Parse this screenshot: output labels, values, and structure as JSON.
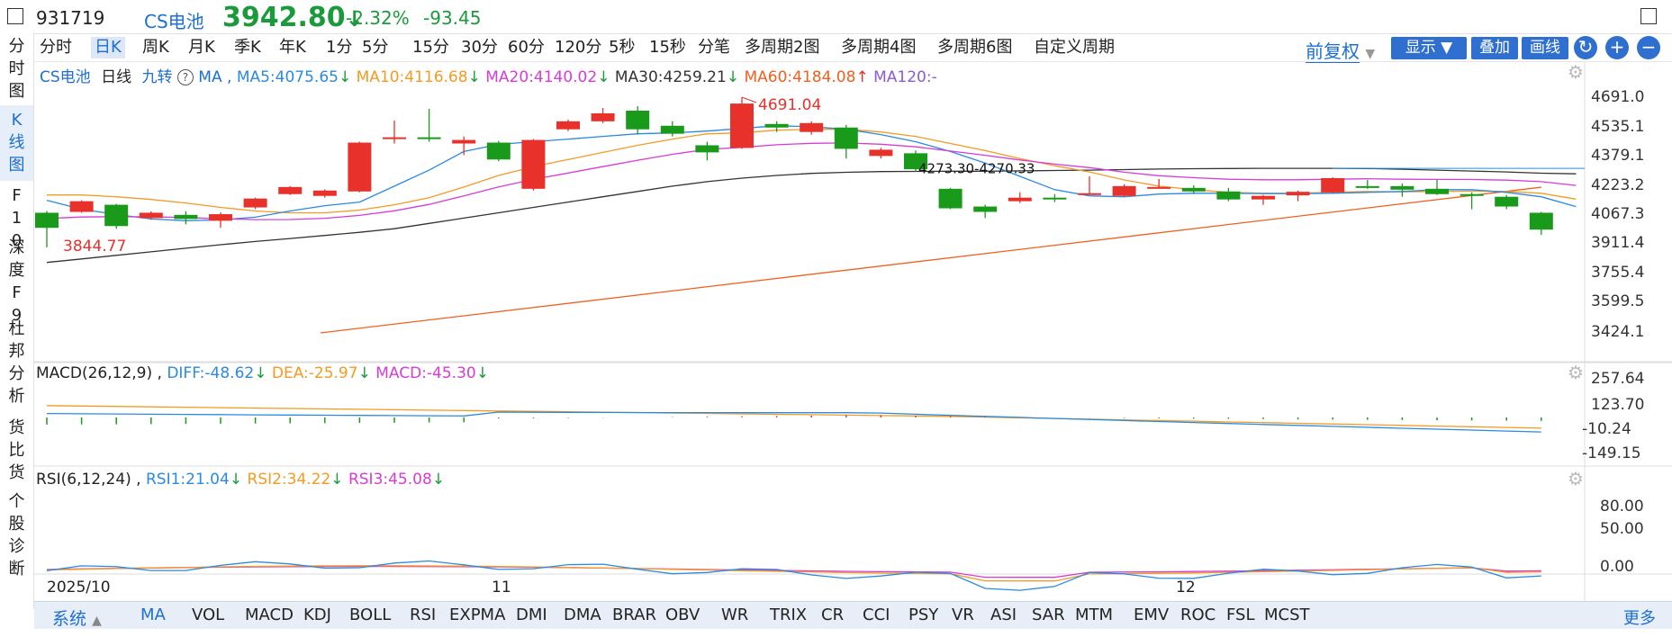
{
  "header": {
    "code": "931719",
    "name": "CS电池",
    "price": "3942.80",
    "change_pct": "-2.32%",
    "change": "-93.45"
  },
  "sidebar": {
    "items": [
      {
        "label": "分时图",
        "active": false
      },
      {
        "label": "K线图",
        "active": true
      },
      {
        "label": "F10",
        "active": false
      },
      {
        "label": "深度F9",
        "active": false
      },
      {
        "label": "杜邦分析",
        "active": false
      },
      {
        "label": "货比货",
        "active": false
      },
      {
        "label": "个股诊断",
        "active": false
      }
    ]
  },
  "periods": {
    "items": [
      "分时",
      "日K",
      "周K",
      "月K",
      "季K",
      "年K",
      "1分",
      "5分",
      "15分",
      "30分",
      "60分",
      "120分",
      "5秒",
      "15秒",
      "分笔",
      "多周期2图",
      "多周期4图",
      "多周期6图",
      "自定义周期"
    ],
    "active": "日K",
    "fuquan": "前复权",
    "show_label": "显示",
    "overlay_label": "叠加",
    "draw_label": "画线"
  },
  "kline": {
    "legend": {
      "name": "CS电池",
      "period": "日线",
      "nine": "九转",
      "ma_label": "MA ,",
      "ma5": "MA5:4075.65",
      "ma10": "MA10:4116.68",
      "ma20": "MA20:4140.02",
      "ma30": "MA30:4259.21",
      "ma60": "MA60:4184.08",
      "ma120": "MA120:-"
    },
    "y_labels": [
      "4691.0",
      "4535.1",
      "4379.1",
      "4223.2",
      "4067.3",
      "3911.4",
      "3755.4",
      "3599.5",
      "3424.1"
    ],
    "annotations": {
      "high": "4691.04",
      "low": "3844.77",
      "range": "4273.30-4270.33"
    },
    "colors": {
      "up": "#e8312a",
      "down": "#1a9a1a",
      "ma5": "#2a8ae0",
      "ma10": "#f59a23",
      "ma20": "#d63cd6",
      "ma30": "#333333",
      "ma60": "#f2601f"
    }
  },
  "macd": {
    "legend": {
      "title": "MACD(26,12,9) ,",
      "diff": "DIFF:-48.62",
      "dea": "DEA:-25.97",
      "macd": "MACD:-45.30"
    },
    "y_labels": [
      "257.64",
      "123.70",
      "-10.24",
      "-149.15"
    ]
  },
  "rsi": {
    "legend": {
      "title": "RSI(6,12,24) ,",
      "rsi1": "RSI1:21.04",
      "rsi2": "RSI2:34.22",
      "rsi3": "RSI3:45.08"
    },
    "y_labels": [
      "80.00",
      "50.00",
      "0.00"
    ]
  },
  "date_axis": [
    "2025/10",
    "11",
    "12"
  ],
  "indicators": {
    "system_label": "系统",
    "items": [
      "MA",
      "VOL",
      "MACD",
      "KDJ",
      "BOLL",
      "RSI",
      "EXPMA",
      "DMI",
      "DMA",
      "BRAR",
      "OBV",
      "WR",
      "TRIX",
      "CR",
      "CCI",
      "PSY",
      "VR",
      "ASI",
      "SAR",
      "MTM",
      "EMV",
      "ROC",
      "FSL",
      "MCST"
    ],
    "active": "MA",
    "more_label": "更多"
  },
  "chart_data": {
    "type": "candlestick",
    "y_range": [
      3424.1,
      4691.0
    ],
    "candles": [
      {
        "o": 4040,
        "c": 3955,
        "h": 4050,
        "l": 3845
      },
      {
        "o": 4045,
        "c": 4105,
        "h": 4110,
        "l": 4040
      },
      {
        "o": 4085,
        "c": 3965,
        "h": 4090,
        "l": 3950
      },
      {
        "o": 4010,
        "c": 4040,
        "h": 4048,
        "l": 4000
      },
      {
        "o": 4028,
        "c": 4005,
        "h": 4048,
        "l": 3975
      },
      {
        "o": 3995,
        "c": 4032,
        "h": 4042,
        "l": 3955
      },
      {
        "o": 4070,
        "c": 4120,
        "h": 4125,
        "l": 4060
      },
      {
        "o": 4145,
        "c": 4185,
        "h": 4190,
        "l": 4140
      },
      {
        "o": 4135,
        "c": 4165,
        "h": 4172,
        "l": 4125
      },
      {
        "o": 4160,
        "c": 4435,
        "h": 4440,
        "l": 4155
      },
      {
        "o": 4460,
        "c": 4465,
        "h": 4560,
        "l": 4430
      },
      {
        "o": 4465,
        "c": 4455,
        "h": 4625,
        "l": 4440
      },
      {
        "o": 4430,
        "c": 4450,
        "h": 4470,
        "l": 4365
      },
      {
        "o": 4435,
        "c": 4340,
        "h": 4445,
        "l": 4330
      },
      {
        "o": 4175,
        "c": 4450,
        "h": 4455,
        "l": 4165
      },
      {
        "o": 4510,
        "c": 4555,
        "h": 4565,
        "l": 4500
      },
      {
        "o": 4555,
        "c": 4600,
        "h": 4630,
        "l": 4545
      },
      {
        "o": 4615,
        "c": 4510,
        "h": 4640,
        "l": 4480
      },
      {
        "o": 4530,
        "c": 4485,
        "h": 4555,
        "l": 4470
      },
      {
        "o": 4420,
        "c": 4380,
        "h": 4440,
        "l": 4335
      },
      {
        "o": 4405,
        "c": 4655,
        "h": 4691,
        "l": 4400
      },
      {
        "o": 4540,
        "c": 4520,
        "h": 4555,
        "l": 4495
      },
      {
        "o": 4495,
        "c": 4545,
        "h": 4555,
        "l": 4480
      },
      {
        "o": 4520,
        "c": 4400,
        "h": 4535,
        "l": 4345
      },
      {
        "o": 4360,
        "c": 4395,
        "h": 4405,
        "l": 4345
      },
      {
        "o": 4375,
        "c": 4285,
        "h": 4390,
        "l": 4270
      },
      {
        "o": 4175,
        "c": 4065,
        "h": 4180,
        "l": 4060
      },
      {
        "o": 4075,
        "c": 4045,
        "h": 4085,
        "l": 4010
      },
      {
        "o": 4105,
        "c": 4125,
        "h": 4155,
        "l": 4095
      },
      {
        "o": 4125,
        "c": 4120,
        "h": 4145,
        "l": 4100
      },
      {
        "o": 4150,
        "c": 4150,
        "h": 4245,
        "l": 4145
      },
      {
        "o": 4135,
        "c": 4190,
        "h": 4200,
        "l": 4128
      },
      {
        "o": 4185,
        "c": 4185,
        "h": 4230,
        "l": 4180
      },
      {
        "o": 4180,
        "c": 4160,
        "h": 4195,
        "l": 4145
      },
      {
        "o": 4160,
        "c": 4115,
        "h": 4180,
        "l": 4105
      },
      {
        "o": 4115,
        "c": 4135,
        "h": 4140,
        "l": 4085
      },
      {
        "o": 4138,
        "c": 4158,
        "h": 4165,
        "l": 4105
      },
      {
        "o": 4155,
        "c": 4235,
        "h": 4240,
        "l": 4150
      },
      {
        "o": 4190,
        "c": 4188,
        "h": 4225,
        "l": 4175
      },
      {
        "o": 4190,
        "c": 4170,
        "h": 4205,
        "l": 4130
      },
      {
        "o": 4175,
        "c": 4145,
        "h": 4225,
        "l": 4140
      },
      {
        "o": 4145,
        "c": 4140,
        "h": 4155,
        "l": 4060
      },
      {
        "o": 4130,
        "c": 4075,
        "h": 4140,
        "l": 4060
      },
      {
        "o": 4040,
        "c": 3945,
        "h": 4045,
        "l": 3915
      }
    ],
    "ma5": [
      4110,
      4060,
      4030,
      4005,
      3995,
      4000,
      4015,
      4050,
      4080,
      4100,
      4190,
      4280,
      4385,
      4425,
      4440,
      4455,
      4470,
      4485,
      4490,
      4500,
      4515,
      4530,
      4525,
      4510,
      4480,
      4440,
      4385,
      4320,
      4245,
      4170,
      4135,
      4130,
      4145,
      4150,
      4150,
      4148,
      4148,
      4150,
      4155,
      4160,
      4170,
      4170,
      4155,
      4130,
      4075
    ],
    "ma10": [
      4140,
      4140,
      4130,
      4115,
      4095,
      4070,
      4050,
      4040,
      4040,
      4055,
      4085,
      4125,
      4185,
      4250,
      4300,
      4340,
      4380,
      4420,
      4455,
      4485,
      4490,
      4505,
      4510,
      4510,
      4495,
      4470,
      4430,
      4390,
      4345,
      4305,
      4270,
      4225,
      4190,
      4170,
      4155,
      4150,
      4150,
      4155,
      4160,
      4158,
      4160,
      4162,
      4160,
      4150,
      4117
    ],
    "ma30": [
      3760,
      3780,
      3800,
      3820,
      3840,
      3860,
      3878,
      3895,
      3912,
      3930,
      3950,
      3980,
      4010,
      4040,
      4070,
      4100,
      4130,
      4160,
      4190,
      4215,
      4235,
      4250,
      4262,
      4268,
      4272,
      4273,
      4274,
      4274,
      4276,
      4278,
      4280,
      4283,
      4286,
      4288,
      4289,
      4290,
      4290,
      4290,
      4289,
      4285,
      4280,
      4275,
      4270,
      4263,
      4259
    ]
  }
}
